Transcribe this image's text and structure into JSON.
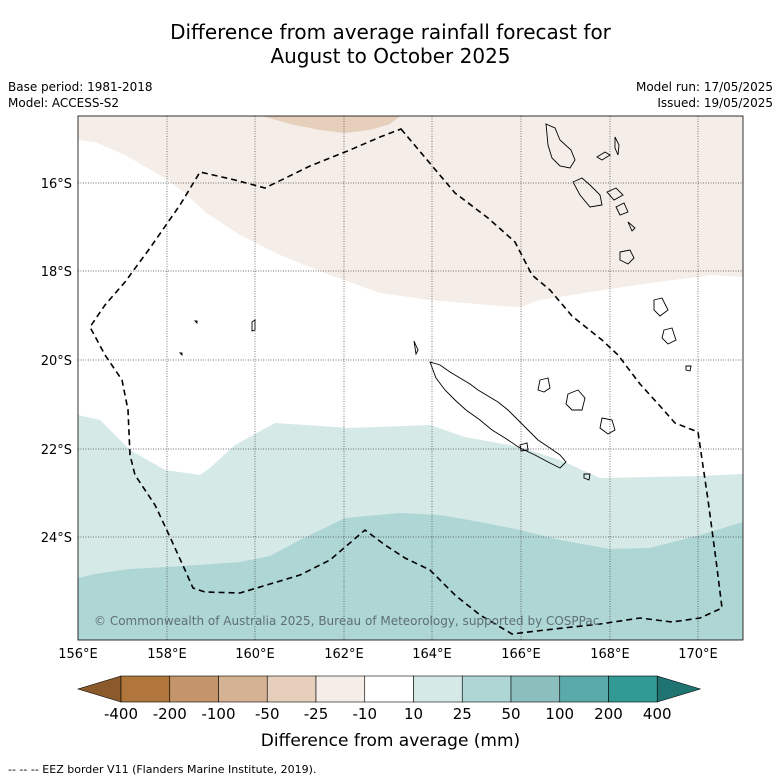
{
  "title_line1": "Difference from average rainfall forecast for",
  "title_line2": "August to October 2025",
  "meta": {
    "base_period": "Base period: 1981-2018",
    "model": "Model: ACCESS-S2",
    "model_run": "Model run: 17/05/2025",
    "issued": "Issued: 19/05/2025"
  },
  "credit": "© Commonwealth of Australia 2025, Bureau of Meteorology, supported by COSPPac",
  "axes": {
    "lat_labels": [
      "16°S",
      "18°S",
      "20°S",
      "22°S",
      "24°S"
    ],
    "lon_labels": [
      "156°E",
      "158°E",
      "160°E",
      "162°E",
      "164°E",
      "166°E",
      "168°E",
      "170°E"
    ]
  },
  "colorbar": {
    "title": "Difference from average (mm)",
    "labels": [
      "-400",
      "-200",
      "-100",
      "-50",
      "-25",
      "-10",
      "10",
      "25",
      "50",
      "100",
      "200",
      "400"
    ],
    "colors": [
      "#8b5a2b",
      "#b0763c",
      "#c4946a",
      "#d4b293",
      "#e6cfbb",
      "#f5ede7",
      "#ffffff",
      "#d5e9e7",
      "#add6d5",
      "#8abfbe",
      "#5aaaaa",
      "#329a95",
      "#1f7471"
    ]
  },
  "legend_line": "--  --  -- EEZ border V11 (Flanders Marine Institute, 2019).",
  "colors": {
    "pale_brown": "#f5ede7",
    "light_brown": "#e6cfbb",
    "light_teal": "#d5e9e7",
    "mid_teal": "#add6d5"
  }
}
